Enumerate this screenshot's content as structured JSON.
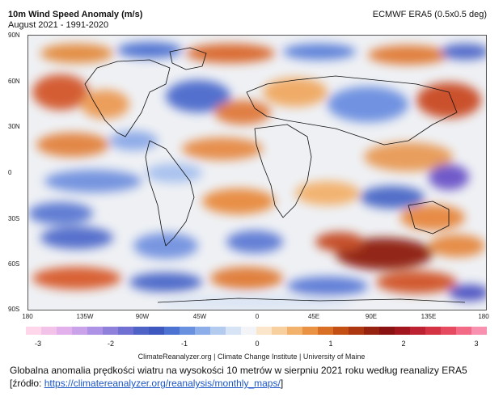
{
  "header": {
    "title": "10m Wind Speed Anomaly (m/s)",
    "subtitle": "August 2021 - 1991-2020",
    "source": "ECMWF ERA5 (0.5x0.5 deg)"
  },
  "map": {
    "lat_labels": [
      "90N",
      "60N",
      "30N",
      "0",
      "30S",
      "60S",
      "90S"
    ],
    "lon_labels": [
      "180",
      "135W",
      "90W",
      "45W",
      "0",
      "45E",
      "90E",
      "135E",
      "180"
    ]
  },
  "colorbar": {
    "ticks": [
      "-3",
      "-2",
      "-1",
      "0",
      "1",
      "2",
      "3"
    ],
    "colors": [
      "#ffd6ea",
      "#f3c2e8",
      "#e2b0ea",
      "#c9a2ea",
      "#ae92e6",
      "#8f80dc",
      "#6f70d2",
      "#4f62c6",
      "#3f58c0",
      "#4c72d2",
      "#6a90e0",
      "#8eaeea",
      "#b4cbf0",
      "#d6e4f6",
      "#f2f4f8",
      "#fbe6cc",
      "#f8cf9e",
      "#f3b26c",
      "#ea9244",
      "#d96f24",
      "#c44f14",
      "#ad3710",
      "#962310",
      "#8a1212",
      "#a21620",
      "#bd2232",
      "#d43344",
      "#e64a60",
      "#f26a86",
      "#f890b0"
    ]
  },
  "footer": {
    "credit": "ClimateReanalyzer.org | Climate Change Institute | University of Maine",
    "caption_line1": "Globalna anomalia prędkości wiatru na wysokości 10 metrów w sierpniu 2021 roku według reanalizy ERA5",
    "caption_prefix": "[źródło: ",
    "caption_link": "https://climatereanalyzer.org/reanalysis/monthly_maps/",
    "caption_suffix": "]"
  }
}
